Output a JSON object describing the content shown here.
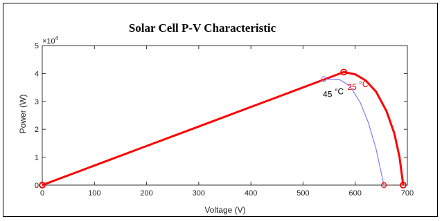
{
  "chart_data": {
    "type": "line",
    "title": "Solar Cell P-V Characteristic",
    "xlabel": "Voltage (V)",
    "ylabel": "Power (W)",
    "y_multiplier": "×10",
    "y_exponent": "4",
    "xlim": [
      0,
      700
    ],
    "ylim": [
      0,
      5
    ],
    "xticks": [
      "0",
      "100",
      "200",
      "300",
      "400",
      "500",
      "600",
      "700"
    ],
    "yticks": [
      "0",
      "1",
      "2",
      "3",
      "4",
      "5"
    ],
    "grid": false,
    "series": [
      {
        "color": "#7b7bff",
        "voc": 655,
        "vmp": 540,
        "pmp": 3.8,
        "points": [
          [
            0,
            0
          ],
          [
            100,
            0.7
          ],
          [
            200,
            1.41
          ],
          [
            300,
            2.11
          ],
          [
            400,
            2.81
          ],
          [
            500,
            3.52
          ],
          [
            540,
            3.8
          ],
          [
            570,
            3.78
          ],
          [
            590,
            3.55
          ],
          [
            610,
            2.95
          ],
          [
            625,
            2.25
          ],
          [
            640,
            1.3
          ],
          [
            655,
            0
          ]
        ],
        "annotation": {
          "value": "45",
          "unit": "°C",
          "x": 538,
          "y": 3.15,
          "color": "#000000"
        }
      },
      {
        "color": "#ff0000",
        "voc": 692,
        "vmp": 578,
        "pmp": 4.05,
        "points": [
          [
            0,
            0
          ],
          [
            100,
            0.7
          ],
          [
            200,
            1.4
          ],
          [
            300,
            2.1
          ],
          [
            400,
            2.8
          ],
          [
            500,
            3.5
          ],
          [
            578,
            4.05
          ],
          [
            600,
            3.97
          ],
          [
            620,
            3.75
          ],
          [
            640,
            3.35
          ],
          [
            660,
            2.65
          ],
          [
            675,
            1.85
          ],
          [
            685,
            1.0
          ],
          [
            692,
            0
          ]
        ],
        "annotation": {
          "value": "25",
          "unit": "°C",
          "x": 585,
          "y": 3.42,
          "color": "#ff0000"
        }
      }
    ]
  }
}
